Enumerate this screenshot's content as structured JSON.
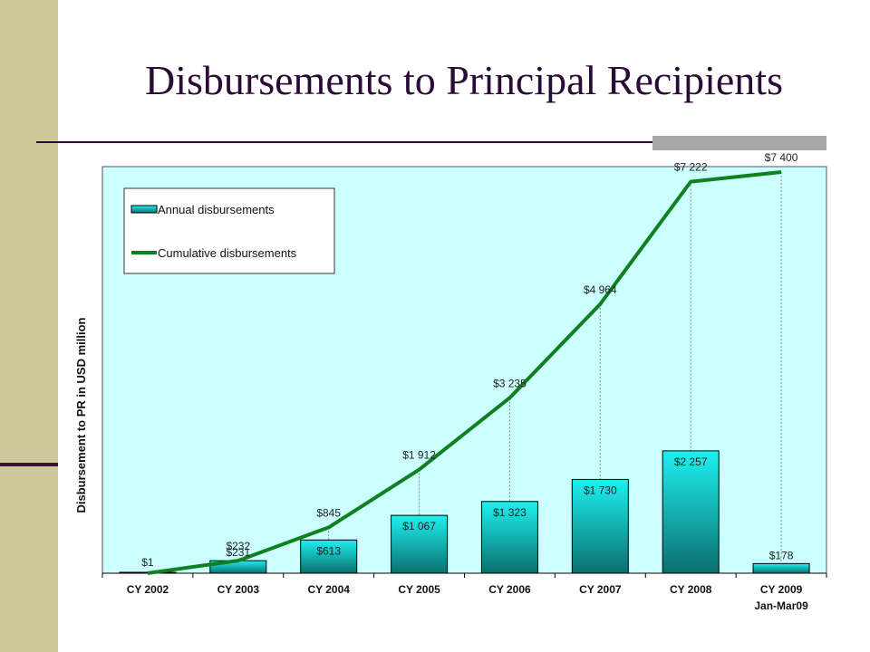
{
  "slide": {
    "title": "Disbursements to Principal Recipients",
    "colors": {
      "band": "#cdc99a",
      "title": "#2a0b36",
      "plot_bg": "#ccffff",
      "bar_top": "#1ef0f0",
      "bar_bottom": "#0a6f6f",
      "line": "#0f8020"
    }
  },
  "chart_data": {
    "type": "bar",
    "categories": [
      "CY 2002",
      "CY 2003",
      "CY 2004",
      "CY 2005",
      "CY 2006",
      "CY 2007",
      "CY 2008",
      "CY 2009"
    ],
    "category_sublabels": [
      "",
      "",
      "",
      "",
      "",
      "",
      "",
      "Jan-Mar09"
    ],
    "ylabel": "Disbursement to PR in USD million",
    "xlabel": "",
    "ylim": [
      0,
      7500
    ],
    "legend_position": "top-left",
    "series": [
      {
        "name": "Annual disbursements",
        "kind": "bar",
        "values": [
          1,
          231,
          613,
          1067,
          1323,
          1730,
          2257,
          178
        ],
        "labels": [
          "$1",
          "$231",
          "$613",
          "$1 067",
          "$1 323",
          "$1 730",
          "$2 257",
          "$178"
        ]
      },
      {
        "name": "Cumulative disbursements",
        "kind": "line",
        "values": [
          1,
          232,
          845,
          1912,
          3235,
          4964,
          7222,
          7400
        ],
        "labels": [
          "$1",
          "$232",
          "$845",
          "$1 912",
          "$3 235",
          "$4 964",
          "$7 222",
          "$7 400"
        ]
      }
    ]
  }
}
